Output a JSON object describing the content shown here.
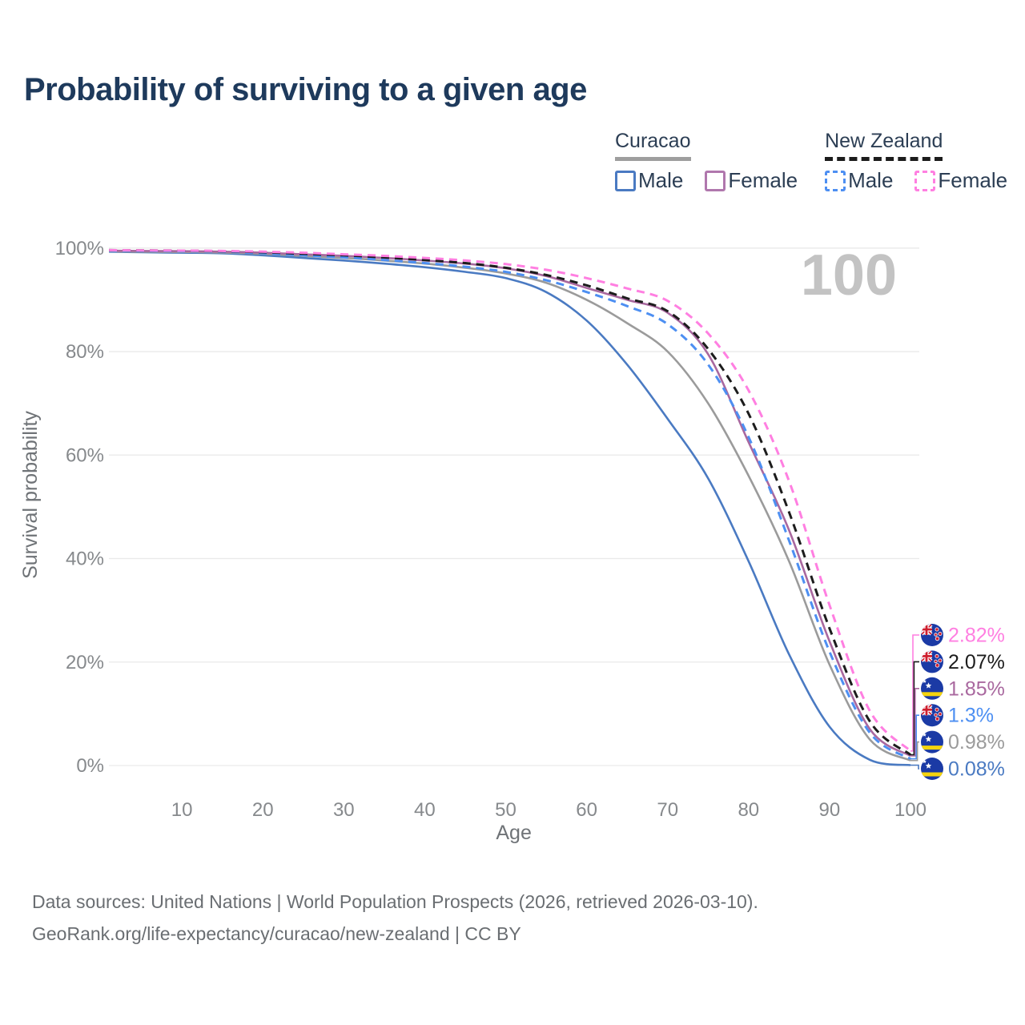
{
  "header": {
    "title": "Probability of surviving to a given age"
  },
  "legend": {
    "groups": [
      {
        "label": "Curacao",
        "underline_style": "solid",
        "underline_color": "#9e9e9e",
        "items": [
          {
            "label": "Male",
            "color": "#4a7ac2",
            "dashed": false
          },
          {
            "label": "Female",
            "color": "#b077ad",
            "dashed": false
          }
        ]
      },
      {
        "label": "New Zealand",
        "underline_style": "dashed",
        "underline_color": "#1c1c1c",
        "items": [
          {
            "label": "Male",
            "color": "#4d8ff2",
            "dashed": true
          },
          {
            "label": "Female",
            "color": "#ff7fe1",
            "dashed": true
          }
        ]
      }
    ]
  },
  "chart_data": {
    "type": "line",
    "title": "Probability of surviving to a given age",
    "xlabel": "Age",
    "ylabel": "Survival probability",
    "xlim": [
      1,
      100
    ],
    "ylim": [
      0,
      100
    ],
    "x_ticks": [
      10,
      20,
      30,
      40,
      50,
      60,
      70,
      80,
      90,
      100
    ],
    "y_ticks": [
      0,
      20,
      40,
      60,
      80,
      100
    ],
    "y_tick_suffix": "%",
    "grid": "horizontal",
    "legend_position": "top-right",
    "hover_age_watermark": "100",
    "x": [
      1,
      5,
      10,
      15,
      20,
      25,
      30,
      35,
      40,
      45,
      50,
      55,
      60,
      65,
      70,
      75,
      80,
      85,
      90,
      95,
      100
    ],
    "series": [
      {
        "id": "curacao-male",
        "name": "Curacao Male",
        "color": "#4a7ac2",
        "dashed": false,
        "end_label": "0.08%",
        "flag": "curacao",
        "values": [
          99.3,
          99.2,
          99.1,
          99.0,
          98.6,
          98.1,
          97.6,
          97.0,
          96.3,
          95.4,
          94.2,
          91.5,
          86.0,
          77.5,
          67.0,
          55.5,
          39.5,
          21.5,
          7.5,
          1.1,
          0.08
        ]
      },
      {
        "id": "curacao-total",
        "name": "Curacao",
        "color": "#9b9b9b",
        "dashed": false,
        "end_label": "0.98%",
        "flag": "curacao",
        "values": [
          99.4,
          99.3,
          99.25,
          99.15,
          98.9,
          98.5,
          98.1,
          97.6,
          97.0,
          96.2,
          95.1,
          93.3,
          90.0,
          85.5,
          80.0,
          70.0,
          56.0,
          39.5,
          19.5,
          5.0,
          0.98
        ]
      },
      {
        "id": "curacao-female",
        "name": "Curacao Female",
        "color": "#a9689f",
        "dashed": false,
        "end_label": "1.85%",
        "flag": "curacao",
        "values": [
          99.5,
          99.45,
          99.4,
          99.3,
          99.1,
          98.8,
          98.5,
          98.1,
          97.6,
          97.0,
          96.1,
          94.6,
          92.3,
          90.0,
          87.5,
          79.5,
          62.5,
          45.5,
          24.0,
          7.0,
          1.85
        ]
      },
      {
        "id": "new-zealand-male",
        "name": "New Zealand Male",
        "color": "#4d8ff2",
        "dashed": true,
        "end_label": "1.3%",
        "flag": "new-zealand",
        "values": [
          99.5,
          99.45,
          99.4,
          99.3,
          99.0,
          98.6,
          98.2,
          97.7,
          97.1,
          96.4,
          95.4,
          93.8,
          91.5,
          88.8,
          85.3,
          77.5,
          63.5,
          43.5,
          22.0,
          6.3,
          1.3
        ]
      },
      {
        "id": "new-zealand-total",
        "name": "New Zealand",
        "color": "#1c1c1c",
        "dashed": true,
        "end_label": "2.07%",
        "flag": "new-zealand",
        "values": [
          99.6,
          99.55,
          99.5,
          99.4,
          99.2,
          98.9,
          98.6,
          98.2,
          97.7,
          97.1,
          96.2,
          94.8,
          92.8,
          90.3,
          87.8,
          80.5,
          68.0,
          49.0,
          26.5,
          8.5,
          2.07
        ]
      },
      {
        "id": "new-zealand-female",
        "name": "New Zealand Female",
        "color": "#ff7fe1",
        "dashed": true,
        "end_label": "2.82%",
        "flag": "new-zealand",
        "values": [
          99.6,
          99.55,
          99.5,
          99.45,
          99.3,
          99.1,
          98.8,
          98.5,
          98.1,
          97.6,
          96.9,
          95.8,
          94.2,
          92.2,
          89.8,
          83.5,
          72.5,
          55.0,
          31.0,
          10.5,
          2.82
        ]
      }
    ],
    "colors": {
      "grid": "#e9e9e9",
      "tick_label": "#86898c",
      "axis_label": "#6f7377",
      "watermark": "#c3c3c3",
      "flag_blue": "#1b3aa5",
      "flag_red": "#cf1f2f",
      "flag_yellow": "#f5d40e"
    }
  },
  "footer": {
    "line1": "Data sources: United Nations | World Population Prospects (2026, retrieved 2026-03-10).",
    "line2": "GeoRank.org/life-expectancy/curacao/new-zealand | CC BY"
  }
}
